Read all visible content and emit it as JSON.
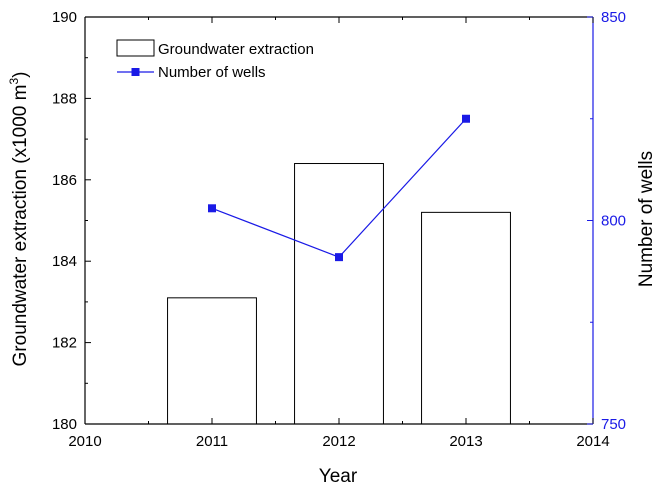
{
  "chart_data": {
    "type": "bar+line",
    "x": {
      "label": "Year",
      "lim": [
        2010,
        2014
      ],
      "ticks": [
        2010,
        2011,
        2012,
        2013,
        2014
      ],
      "tick_labels": [
        "2010",
        "2011",
        "2012",
        "2013",
        "2014"
      ]
    },
    "y_left": {
      "label": "Groundwater extraction (x1000 m",
      "label_sup": "3",
      "label_end": ")",
      "lim": [
        180,
        190
      ],
      "ticks": [
        180,
        182,
        184,
        186,
        188,
        190
      ],
      "tick_labels": [
        "180",
        "182",
        "184",
        "186",
        "188",
        "190"
      ]
    },
    "y_right": {
      "label": "Number of wells",
      "lim": [
        750,
        850
      ],
      "ticks": [
        750,
        800,
        850
      ],
      "tick_labels": [
        "750",
        "800",
        "850"
      ],
      "color": "#1a1ae6"
    },
    "bar_width_years": 0.7,
    "series": [
      {
        "name": "Groundwater extraction",
        "type": "bar",
        "axis": "left",
        "x": [
          2011,
          2012,
          2013
        ],
        "values": [
          183.1,
          186.4,
          185.2
        ],
        "fill": "#ffffff",
        "stroke": "#000000"
      },
      {
        "name": "Number of wells",
        "type": "line",
        "axis": "right",
        "x": [
          2011,
          2012,
          2013
        ],
        "values": [
          803,
          791,
          825
        ],
        "color": "#1a1ae6"
      }
    ],
    "legend": {
      "position": "top-left",
      "entries": [
        "Groundwater extraction",
        "Number of wells"
      ]
    },
    "grid": false
  }
}
